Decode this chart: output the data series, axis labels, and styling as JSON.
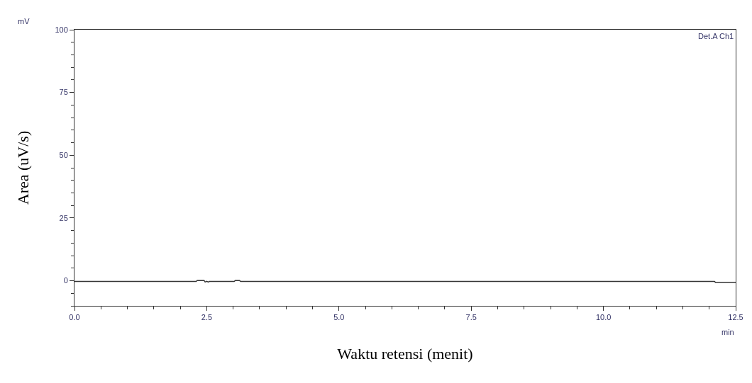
{
  "chart_data": {
    "type": "line",
    "xlabel": "Waktu retensi (menit)",
    "ylabel": "Area (uV/s)",
    "annotations": [
      "mV",
      "Det.A Ch1",
      "min"
    ],
    "series": [
      {
        "color": "#333333",
        "x": [
          0,
          2.3,
          2.32,
          2.45,
          2.47,
          2.5,
          2.53,
          2.55,
          3.02,
          3.04,
          3.12,
          3.14,
          12.1,
          12.12,
          12.5
        ],
        "values": [
          -0.3,
          -0.3,
          0.1,
          0.1,
          -0.5,
          -0.2,
          -0.5,
          -0.3,
          -0.3,
          0.1,
          0.1,
          -0.3,
          -0.3,
          -0.7,
          -0.7
        ]
      }
    ],
    "xlim": [
      0,
      12.5
    ],
    "ylim": [
      -10,
      100
    ],
    "xticks": [
      {
        "value": 0,
        "label": "0.0"
      },
      {
        "value": 2.5,
        "label": "2.5"
      },
      {
        "value": 5,
        "label": "5.0"
      },
      {
        "value": 7.5,
        "label": "7.5"
      },
      {
        "value": 10,
        "label": "10.0"
      },
      {
        "value": 12.5,
        "label": "12.5"
      }
    ],
    "yticks": [
      0,
      25,
      50,
      75,
      100
    ],
    "legend": false,
    "marker": "none",
    "line_style": "solid"
  }
}
